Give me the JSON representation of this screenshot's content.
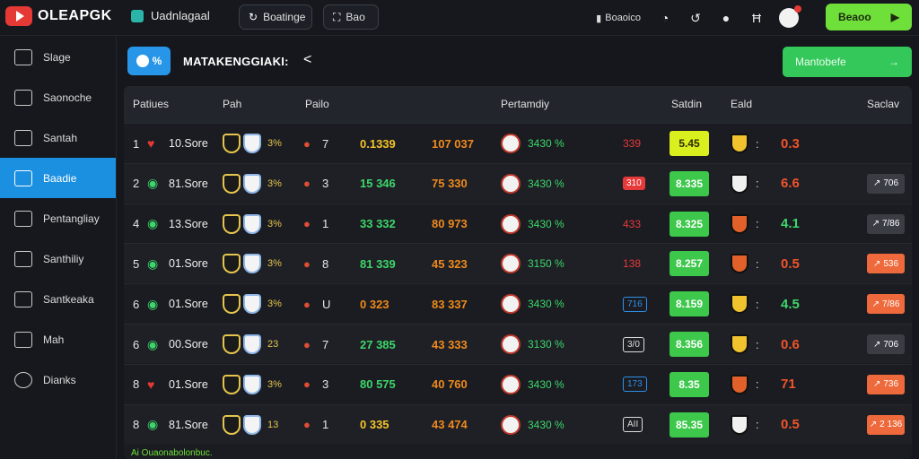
{
  "app": {
    "title": "OLEAPGK"
  },
  "topbar": {
    "workspace": "Uadnlagaal",
    "pill_left": "Boatinge",
    "pill_right": "Bao",
    "account_label": "Boaoico",
    "cta": "Beaoo",
    "cta_arrow": "▶"
  },
  "sidebar": {
    "items": [
      {
        "label": "Slage"
      },
      {
        "label": "Saonoche"
      },
      {
        "label": "Santah"
      },
      {
        "label": "Baadie"
      },
      {
        "label": "Pentangliay"
      },
      {
        "label": "Santhiliy"
      },
      {
        "label": "Santkeaka"
      },
      {
        "label": "Mah"
      },
      {
        "label": "Dianks"
      }
    ]
  },
  "main": {
    "badge": "%",
    "title": "MATAKENGGIAKI:",
    "back_icon": "<",
    "cta": "Mantobefe",
    "cta_arrow": "→"
  },
  "table": {
    "headers": [
      "Patiues",
      "Pah",
      "Pailo",
      "Pertamdiy",
      "Satdin",
      "Eald",
      "Saclav"
    ],
    "rows": [
      {
        "rank": "1",
        "status": "red",
        "team": "10.Sore",
        "pct": "3%",
        "goals": "7",
        "odds1": "0.1339",
        "odds1_color": "ylw",
        "odds2": "107 037",
        "odds2_color": "org",
        "win": "3430 %",
        "mark": "339",
        "mark_type": "redtxt",
        "score": "5.45",
        "score_type": "y",
        "shield": "y",
        "rate": "0.3",
        "rate_color": "r",
        "tag": "",
        "tag_type": ""
      },
      {
        "rank": "2",
        "status": "green",
        "team": "81.Sore",
        "pct": "3%",
        "goals": "3",
        "odds1": "15 346",
        "odds1_color": "grn",
        "odds2": "75 330",
        "odds2_color": "org",
        "win": "3430 %",
        "mark": "310",
        "mark_type": "red",
        "score": "8.335",
        "score_type": "",
        "shield": "w",
        "rate": "6.6",
        "rate_color": "r",
        "tag": "706",
        "tag_type": "gray"
      },
      {
        "rank": "4",
        "status": "green",
        "team": "13.Sore",
        "pct": "3%",
        "goals": "1",
        "odds1": "33 332",
        "odds1_color": "grn",
        "odds2": "80 973",
        "odds2_color": "org",
        "win": "3430 %",
        "mark": "433",
        "mark_type": "redtxt",
        "score": "8.325",
        "score_type": "",
        "shield": "r",
        "rate": "4.1",
        "rate_color": "g",
        "tag": "7/86",
        "tag_type": "gray"
      },
      {
        "rank": "5",
        "status": "green",
        "team": "01.Sore",
        "pct": "3%",
        "goals": "8",
        "odds1": "81 339",
        "odds1_color": "grn",
        "odds2": "45 323",
        "odds2_color": "org",
        "win": "3150 %",
        "mark": "138",
        "mark_type": "redtxt",
        "score": "8.257",
        "score_type": "",
        "shield": "r",
        "rate": "0.5",
        "rate_color": "r",
        "tag": "536",
        "tag_type": "orange"
      },
      {
        "rank": "6",
        "status": "green",
        "team": "01.Sore",
        "pct": "3%",
        "goals": "U",
        "odds1": "0 323",
        "odds1_color": "org",
        "odds2": "83 337",
        "odds2_color": "org",
        "win": "3430 %",
        "mark": "716",
        "mark_type": "blue",
        "score": "8.159",
        "score_type": "",
        "shield": "y",
        "rate": "4.5",
        "rate_color": "g",
        "tag": "7/86",
        "tag_type": "orange"
      },
      {
        "rank": "6",
        "status": "green",
        "team": "00.Sore",
        "pct": "23",
        "goals": "7",
        "odds1": "27 385",
        "odds1_color": "grn",
        "odds2": "43 333",
        "odds2_color": "org",
        "win": "3130 %",
        "mark": "3/0",
        "mark_type": "white",
        "score": "8.356",
        "score_type": "",
        "shield": "y",
        "rate": "0.6",
        "rate_color": "r",
        "tag": "706",
        "tag_type": "gray"
      },
      {
        "rank": "8",
        "status": "red",
        "team": "01.Sore",
        "pct": "3%",
        "goals": "3",
        "odds1": "80 575",
        "odds1_color": "grn",
        "odds2": "40 760",
        "odds2_color": "org",
        "win": "3430 %",
        "mark": "173",
        "mark_type": "blue",
        "score": "8.35",
        "score_type": "",
        "shield": "r",
        "rate": "71",
        "rate_color": "r",
        "tag": "736",
        "tag_type": "orange"
      },
      {
        "rank": "8",
        "status": "green",
        "team": "81.Sore",
        "pct": "13",
        "goals": "1",
        "odds1": "0 335",
        "odds1_color": "ylw",
        "odds2": "43 474",
        "odds2_color": "org",
        "win": "3430 %",
        "mark": "AII",
        "mark_type": "white",
        "score": "85.35",
        "score_type": "",
        "shield": "w",
        "rate": "0.5",
        "rate_color": "r",
        "tag": "2 136",
        "tag_type": "orange"
      }
    ]
  },
  "footer": {
    "note": "Ai Ouaonabolonbuc."
  }
}
